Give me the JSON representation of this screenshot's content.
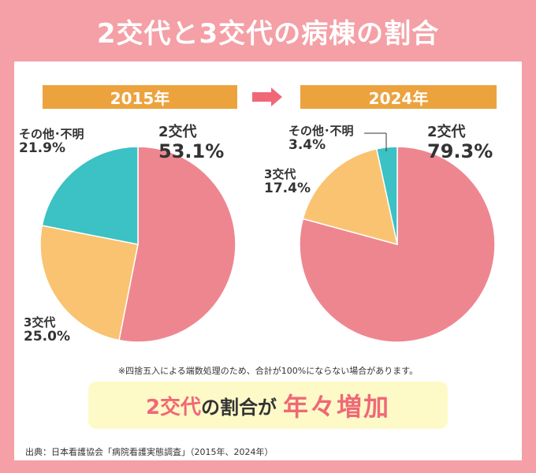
{
  "title": "2交代と3交代の病棟の割合",
  "note": "※四捨五入による端数処理のため、合計が100%にならない場合があります。",
  "banner": {
    "part1": "2交代",
    "part2": "の割合が",
    "part3": "年々増加"
  },
  "source": "出典：日本看護協会「病院看護実態調査」（2015年、2024年）",
  "colors": {
    "two_shift": "#ee8690",
    "three_shift": "#f9c371",
    "other": "#3cc1c4",
    "accent": "#eca33e"
  },
  "chart_data": [
    {
      "type": "pie",
      "title": "2015年",
      "slices": [
        {
          "name": "2交代",
          "value": 53.1,
          "label": "53.1%"
        },
        {
          "name": "3交代",
          "value": 25.0,
          "label": "25.0%"
        },
        {
          "name": "その他･不明",
          "value": 21.9,
          "label": "21.9%"
        }
      ]
    },
    {
      "type": "pie",
      "title": "2024年",
      "slices": [
        {
          "name": "2交代",
          "value": 79.3,
          "label": "79.3%"
        },
        {
          "name": "3交代",
          "value": 17.4,
          "label": "17.4%"
        },
        {
          "name": "その他･不明",
          "value": 3.4,
          "label": "3.4%"
        }
      ]
    }
  ]
}
